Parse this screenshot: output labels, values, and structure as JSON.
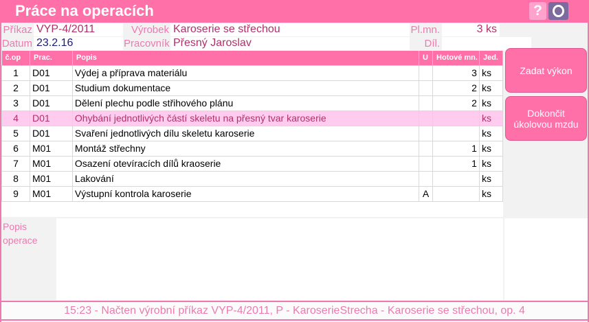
{
  "window": {
    "title": "Práce na operacích",
    "help_label": "?"
  },
  "header": {
    "prikaz_label": "Příkaz",
    "prikaz": "VYP-4/2011",
    "vyrobek_label": "Výrobek",
    "vyrobek": "Karoserie se střechou",
    "plmn_label": "Pl.mn.",
    "plmn": "3 ks",
    "datum_label": "Datum",
    "datum": "23.2.16",
    "pracovnik_label": "Pracovník",
    "pracovnik": "Přesný Jaroslav",
    "dillist_label": "Díl. list",
    "dillist": ""
  },
  "table": {
    "columns": [
      "č.op",
      "Prac.",
      "Popis",
      "U",
      "Hotové mn.",
      "Jed."
    ],
    "rows": [
      [
        "1",
        "D01",
        "Výdej a příprava materiálu",
        "",
        "3",
        "ks"
      ],
      [
        "2",
        "D01",
        "Studium dokumentace",
        "",
        "2",
        "ks"
      ],
      [
        "3",
        "D01",
        "Dělení plechu podle střihového plánu",
        "",
        "2",
        "ks"
      ],
      [
        "4",
        "D01",
        "Ohybání jednotlivých částí skeletu na přesný tvar karoserie",
        "",
        "",
        "ks"
      ],
      [
        "5",
        "D01",
        "Svaření jednotlivých dílu skeletu karoserie",
        "",
        "",
        "ks"
      ],
      [
        "6",
        "M01",
        "Montáž střechny",
        "",
        "1",
        "ks"
      ],
      [
        "7",
        "M01",
        "Osazení otevíracích dílů kraoserie",
        "",
        "1",
        "ks"
      ],
      [
        "8",
        "M01",
        "Lakování",
        "",
        "",
        "ks"
      ],
      [
        "9",
        "M01",
        "Výstupní kontrola karoserie",
        "A",
        "",
        "ks"
      ]
    ],
    "selected_row": 4
  },
  "buttons": {
    "zadat": "Zadat výkon",
    "dokoncit": "Dokončit úkolovou mzdu"
  },
  "popis": {
    "label": "Popis operace",
    "value": ""
  },
  "status": "15:23 - Načten výrobní příkaz VYP-4/2011, P - KaroserieStrecha - Karoserie se střechou, op. 4",
  "colors": {
    "accent": "#ff6fa8",
    "selected": "#ffccf0",
    "label": "#ec7ab0"
  }
}
